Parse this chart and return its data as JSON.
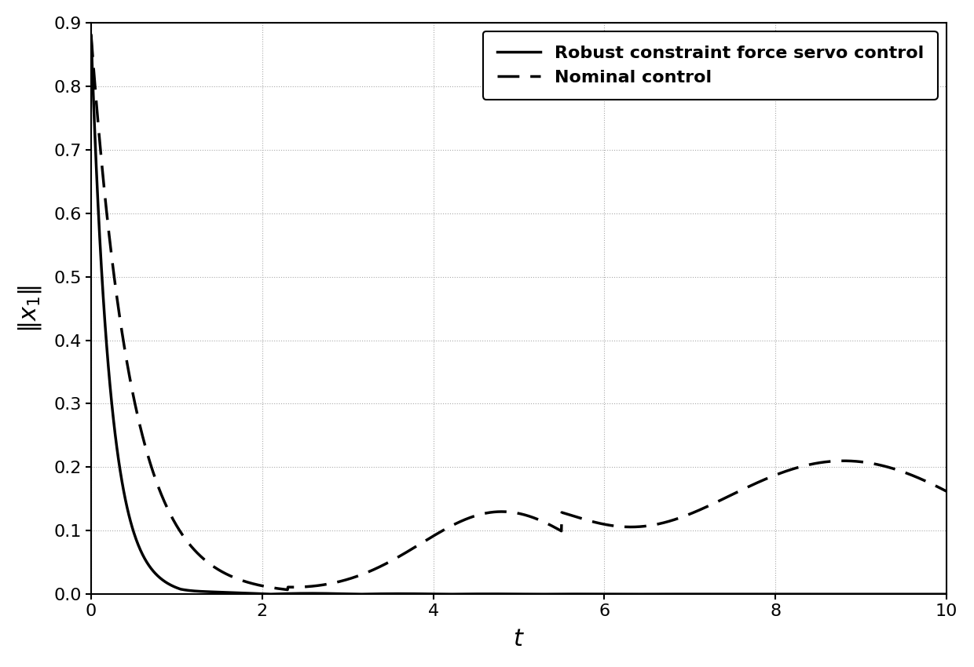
{
  "title": "",
  "xlabel": "$t$",
  "ylabel": "$\\|x_1\\|$",
  "xlim": [
    0,
    10
  ],
  "ylim": [
    0,
    0.9
  ],
  "yticks": [
    0,
    0.1,
    0.2,
    0.3,
    0.4,
    0.5,
    0.6,
    0.7,
    0.8,
    0.9
  ],
  "xticks": [
    0,
    2,
    4,
    6,
    8,
    10
  ],
  "legend_labels": [
    "Robust constraint force servo control",
    "Nominal control"
  ],
  "line_color": "#000000",
  "line_width": 2.5,
  "dashed_linewidth": 2.5,
  "dashes": [
    8,
    4
  ],
  "background_color": "#ffffff",
  "grid_color": "#aaaaaa"
}
